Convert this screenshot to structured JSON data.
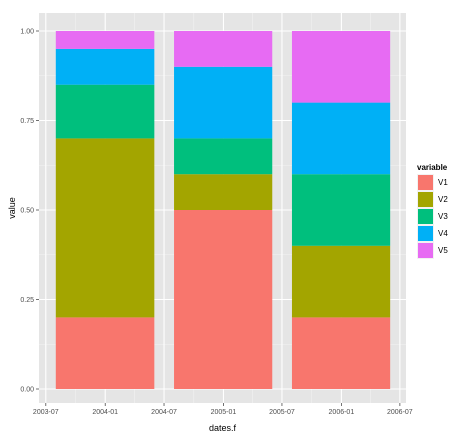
{
  "chart_data": {
    "type": "bar",
    "stacked": true,
    "xlabel": "dates.f",
    "ylabel": "value",
    "ylim": [
      0,
      1
    ],
    "y_ticks": [
      0,
      0.25,
      0.5,
      0.75,
      1
    ],
    "y_tick_labels": [
      "0.00",
      "0.25",
      "0.50",
      "0.75",
      "1.00"
    ],
    "x_tick_labels": [
      "2003-07",
      "2004-01",
      "2004-07",
      "2005-01",
      "2005-07",
      "2006-01",
      "2006-07"
    ],
    "x_ticks": [
      "2003-07-01",
      "2004-01-01",
      "2004-07-01",
      "2005-01-01",
      "2005-07-01",
      "2006-01-01",
      "2006-07-01"
    ],
    "xlim": [
      "2003-06-10",
      "2006-07-20"
    ],
    "bars": [
      {
        "start": "2003-08-01",
        "end": "2004-06-01"
      },
      {
        "start": "2004-08-01",
        "end": "2005-06-01"
      },
      {
        "start": "2005-08-01",
        "end": "2006-06-01"
      }
    ],
    "series": [
      {
        "name": "V1",
        "color": "#F8766D",
        "values": [
          0.2,
          0.5,
          0.2
        ]
      },
      {
        "name": "V2",
        "color": "#A3A500",
        "values": [
          0.5,
          0.1,
          0.2
        ]
      },
      {
        "name": "V3",
        "color": "#00BF7D",
        "values": [
          0.15,
          0.1,
          0.2
        ]
      },
      {
        "name": "V4",
        "color": "#00B0F6",
        "values": [
          0.1,
          0.2,
          0.2
        ]
      },
      {
        "name": "V5",
        "color": "#E76BF3",
        "values": [
          0.05,
          0.1,
          0.2
        ]
      }
    ],
    "legend": {
      "title": "variable",
      "position": "right"
    },
    "grid": true,
    "panel_background": "#E5E5E5",
    "grid_color": "#FFFFFF"
  }
}
